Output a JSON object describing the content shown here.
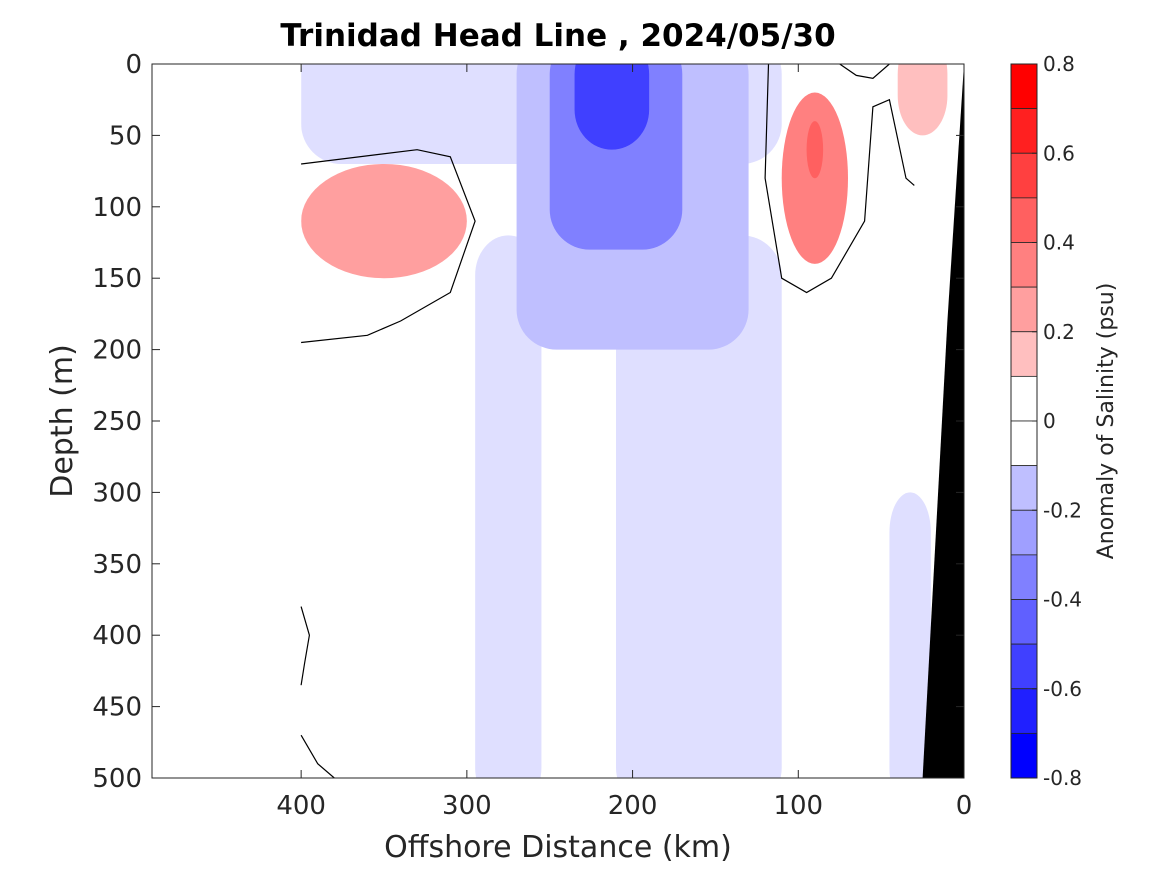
{
  "chart_data": {
    "type": "heatmap",
    "title": "Trinidad Head Line , 2024/05/30",
    "xlabel": "Offshore Distance (km)",
    "ylabel": "Depth (m)",
    "x_ticks": [
      "400",
      "300",
      "200",
      "100",
      "0"
    ],
    "y_ticks": [
      "0",
      "50",
      "100",
      "150",
      "200",
      "250",
      "300",
      "350",
      "400",
      "450",
      "500"
    ],
    "xlim": [
      490,
      0
    ],
    "ylim": [
      0,
      500
    ],
    "colorbar": {
      "label": "Anomaly of Salinity (psu)",
      "tick_labels": [
        "0.8",
        "0.6",
        "0.4",
        "0.2",
        "0",
        "-0.2",
        "-0.4",
        "-0.6",
        "-0.8"
      ],
      "range": [
        -0.8,
        0.8
      ],
      "step": 0.1,
      "low_color": "#0000ff",
      "high_color": "#ff0000"
    },
    "features": [
      {
        "kind": "negative",
        "level": -0.1,
        "x": [
          400,
          110
        ],
        "depth": [
          0,
          70
        ]
      },
      {
        "kind": "negative",
        "level": -0.1,
        "x": [
          295,
          255
        ],
        "depth": [
          120,
          500
        ]
      },
      {
        "kind": "negative",
        "level": -0.1,
        "x": [
          210,
          110
        ],
        "depth": [
          120,
          500
        ]
      },
      {
        "kind": "negative",
        "level": -0.1,
        "x": [
          45,
          20
        ],
        "depth": [
          300,
          500
        ]
      },
      {
        "kind": "negative",
        "level": -0.2,
        "x": [
          270,
          130
        ],
        "depth": [
          0,
          200
        ]
      },
      {
        "kind": "negative",
        "level": -0.4,
        "x": [
          250,
          170
        ],
        "depth": [
          0,
          130
        ]
      },
      {
        "kind": "negative",
        "level": -0.6,
        "x": [
          235,
          190
        ],
        "depth": [
          0,
          60
        ]
      },
      {
        "kind": "positive",
        "level": 0.3,
        "x": [
          400,
          300
        ],
        "depth": [
          70,
          150
        ]
      },
      {
        "kind": "positive",
        "level": 0.4,
        "x": [
          110,
          70
        ],
        "depth": [
          20,
          140
        ]
      },
      {
        "kind": "positive",
        "level": 0.5,
        "x": [
          95,
          85
        ],
        "depth": [
          40,
          80
        ]
      },
      {
        "kind": "positive",
        "level": 0.2,
        "x": [
          40,
          10
        ],
        "depth": [
          0,
          50
        ]
      }
    ],
    "land_mask_color": "#000000",
    "grid": false
  }
}
